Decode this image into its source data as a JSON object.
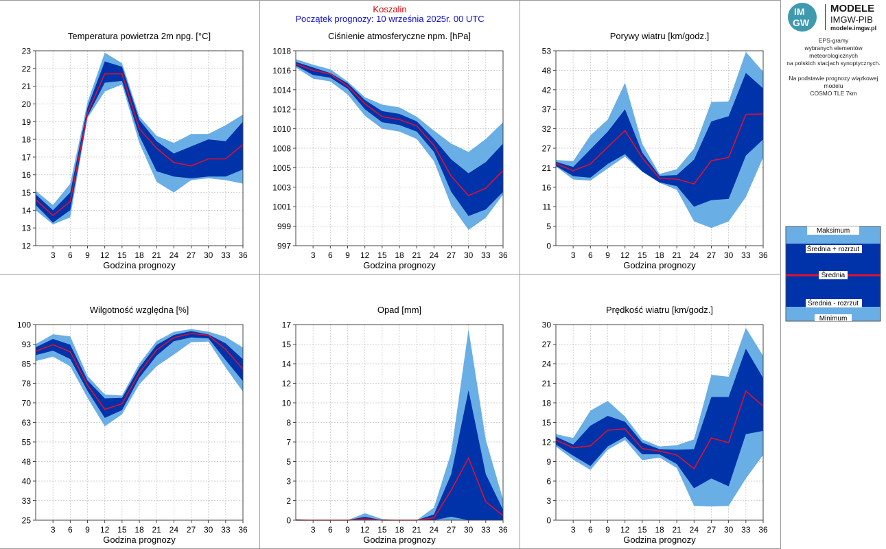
{
  "header": {
    "station": "Koszalin",
    "forecast_start": "Początek prognozy: 10 września 2025r. 00 UTC"
  },
  "logo": {
    "mark_top": "IM",
    "mark_bottom": "GW",
    "title": "MODELE",
    "subtitle": "IMGW-PIB",
    "site": "modele.imgw.pl"
  },
  "description": {
    "lines": [
      "EPS-gramy",
      "wybranych elementów meteorologicznych",
      "na polskich stacjach  synoptycznych."
    ],
    "lines2": [
      "Na podstawie prognozy wiązkowej modelu",
      "COSMO TLE 7km"
    ]
  },
  "legend": {
    "items": [
      "Maksimum",
      "Średnia + rozrzut",
      "Średnia",
      "Średnia - rozrzut",
      "Minimum"
    ]
  },
  "colors": {
    "envelope_light": "#6aaee6",
    "envelope_dark": "#0033aa",
    "mean_line": "#e0102e",
    "grid": "#bfbfbf"
  },
  "chart_data": [
    {
      "type": "area",
      "title": "Temperatura powietrza 2m npg. [°C]",
      "xlabel": "Godzina prognozy",
      "x": [
        0,
        3,
        6,
        9,
        12,
        15,
        18,
        21,
        24,
        27,
        30,
        33,
        36
      ],
      "xlim": [
        0,
        36
      ],
      "xticks": [
        "3",
        "6",
        "9",
        "12",
        "15",
        "18",
        "21",
        "24",
        "27",
        "30",
        "33",
        "36"
      ],
      "ylim": [
        12,
        23
      ],
      "yticks": [
        "12",
        "13",
        "14",
        "15",
        "16",
        "17",
        "18",
        "19",
        "20",
        "21",
        "22",
        "23"
      ],
      "series": [
        {
          "name": "Maksimum",
          "values": [
            15.1,
            14.3,
            15.5,
            20.1,
            22.9,
            22.3,
            19.3,
            18.2,
            17.8,
            18.3,
            18.3,
            18.8,
            19.4
          ]
        },
        {
          "name": "Średnia + rozrzut",
          "values": [
            14.9,
            14.0,
            15.0,
            19.8,
            22.4,
            22.1,
            19.1,
            17.9,
            17.2,
            17.6,
            18.0,
            17.9,
            19.0
          ]
        },
        {
          "name": "Średnia",
          "values": [
            14.6,
            13.7,
            14.5,
            19.5,
            21.7,
            21.7,
            18.6,
            17.5,
            16.7,
            16.5,
            16.9,
            16.9,
            17.7
          ]
        },
        {
          "name": "Średnia - rozrzut",
          "values": [
            14.3,
            13.3,
            14.0,
            19.3,
            21.2,
            21.3,
            18.2,
            16.2,
            15.9,
            15.8,
            15.9,
            15.9,
            16.3
          ]
        },
        {
          "name": "Minimum",
          "values": [
            14.0,
            13.2,
            13.6,
            19.2,
            20.7,
            21.1,
            17.8,
            15.6,
            15.0,
            15.7,
            15.8,
            15.7,
            15.5
          ]
        }
      ]
    },
    {
      "type": "area",
      "title": "Ciśnienie atmosferyczne npm. [hPa]",
      "xlabel": "Godzina prognozy",
      "x": [
        0,
        3,
        6,
        9,
        12,
        15,
        18,
        21,
        24,
        27,
        30,
        33,
        36
      ],
      "xlim": [
        0,
        36
      ],
      "xticks": [
        "3",
        "6",
        "9",
        "12",
        "15",
        "18",
        "21",
        "24",
        "27",
        "30",
        "33",
        "36"
      ],
      "ylim": [
        997,
        1018
      ],
      "yticks": [
        "997",
        "999",
        "1001",
        "1003",
        "1005",
        "1008",
        "1010",
        "1012",
        "1014",
        "1016",
        "1018"
      ],
      "series": [
        {
          "name": "Maksimum",
          "values": [
            1017.1,
            1016.5,
            1016.0,
            1014.7,
            1013.0,
            1012.2,
            1011.9,
            1010.9,
            1009.4,
            1008.0,
            1007.1,
            1008.5,
            1010.3
          ]
        },
        {
          "name": "Średnia + rozrzut",
          "values": [
            1016.8,
            1016.2,
            1015.6,
            1014.5,
            1012.7,
            1011.5,
            1011.2,
            1010.4,
            1008.5,
            1006.3,
            1004.8,
            1006.0,
            1008.0
          ]
        },
        {
          "name": "Średnia",
          "values": [
            1016.6,
            1015.9,
            1015.5,
            1014.2,
            1012.3,
            1010.9,
            1010.6,
            1009.9,
            1007.8,
            1004.5,
            1002.4,
            1003.2,
            1005.1
          ]
        },
        {
          "name": "Średnia - rozrzut",
          "values": [
            1016.4,
            1015.4,
            1015.1,
            1013.9,
            1011.7,
            1010.3,
            1010.0,
            1009.3,
            1007.1,
            1002.8,
            1000.2,
            1000.9,
            1002.8
          ]
        },
        {
          "name": "Minimum",
          "values": [
            1016.2,
            1015.0,
            1014.7,
            1013.3,
            1011.0,
            1009.6,
            1009.3,
            1008.5,
            1006.1,
            1001.3,
            998.7,
            1000.0,
            1002.5
          ]
        }
      ]
    },
    {
      "type": "area",
      "title": "Porywy wiatru [km/godz.]",
      "xlabel": "Godzina prognozy",
      "x": [
        0,
        3,
        6,
        9,
        12,
        15,
        18,
        21,
        24,
        27,
        30,
        33,
        36
      ],
      "xlim": [
        0,
        36
      ],
      "xticks": [
        "3",
        "6",
        "9",
        "12",
        "15",
        "18",
        "21",
        "24",
        "27",
        "30",
        "33",
        "36"
      ],
      "ylim": [
        0,
        53
      ],
      "yticks": [
        "0",
        "5",
        "11",
        "16",
        "21",
        "27",
        "32",
        "37",
        "42",
        "48",
        "53"
      ],
      "series": [
        {
          "name": "Maksimum",
          "values": [
            23.3,
            23.0,
            30.0,
            34.3,
            44.3,
            27.7,
            19.5,
            20.8,
            26.4,
            39.1,
            39.2,
            52.7,
            47.3
          ]
        },
        {
          "name": "Średnia + rozrzut",
          "values": [
            22.8,
            21.4,
            26.2,
            31.0,
            37.1,
            25.3,
            19.0,
            19.2,
            23.4,
            33.8,
            35.2,
            47.0,
            42.8
          ]
        },
        {
          "name": "Średnia",
          "values": [
            22.3,
            20.4,
            22.2,
            26.8,
            31.3,
            23.9,
            18.3,
            18.1,
            16.8,
            23.1,
            24.0,
            35.7,
            35.8
          ]
        },
        {
          "name": "Średnia - rozrzut",
          "values": [
            21.7,
            18.9,
            18.5,
            22.2,
            24.9,
            20.2,
            17.2,
            16.2,
            10.6,
            12.4,
            12.7,
            24.5,
            28.9
          ]
        },
        {
          "name": "Minimum",
          "values": [
            21.5,
            18.0,
            17.7,
            21.0,
            24.2,
            20.1,
            17.1,
            15.2,
            6.6,
            4.8,
            6.6,
            13.2,
            24.0
          ]
        }
      ]
    },
    {
      "type": "area",
      "title": "Wilgotność względna [%]",
      "xlabel": "Godzina prognozy",
      "x": [
        0,
        3,
        6,
        9,
        12,
        15,
        18,
        21,
        24,
        27,
        30,
        33,
        36
      ],
      "xlim": [
        0,
        36
      ],
      "xticks": [
        "3",
        "6",
        "9",
        "12",
        "15",
        "18",
        "21",
        "24",
        "27",
        "30",
        "33",
        "36"
      ],
      "ylim": [
        25,
        100
      ],
      "yticks": [
        "25",
        "33",
        "40",
        "48",
        "55",
        "63",
        "70",
        "78",
        "85",
        "93",
        "100"
      ],
      "series": [
        {
          "name": "Maksimum",
          "values": [
            92.5,
            96.3,
            95.5,
            80.3,
            73.2,
            72.8,
            85.0,
            93.7,
            97.2,
            98.3,
            97.3,
            95.3,
            91.2
          ]
        },
        {
          "name": "Średnia + rozrzut",
          "values": [
            91.3,
            94.5,
            92.3,
            78.6,
            71.7,
            71.9,
            83.5,
            92.2,
            96.0,
            97.5,
            96.2,
            92.8,
            86.7
          ]
        },
        {
          "name": "Średnia",
          "values": [
            89.8,
            92.3,
            89.6,
            76.8,
            67.5,
            69.6,
            81.5,
            90.3,
            95.0,
            96.6,
            95.9,
            90.5,
            82.9
          ]
        },
        {
          "name": "Średnia - rozrzut",
          "values": [
            88.3,
            90.0,
            86.8,
            74.6,
            64.2,
            67.2,
            79.6,
            88.1,
            93.6,
            95.1,
            94.7,
            86.4,
            78.3
          ]
        },
        {
          "name": "Minimum",
          "values": [
            86.0,
            87.7,
            84.0,
            71.9,
            61.0,
            65.6,
            77.1,
            84.0,
            88.5,
            93.2,
            93.5,
            83.5,
            74.3
          ]
        }
      ]
    },
    {
      "type": "area",
      "title": "Opad [mm]",
      "xlabel": "Godzina prognozy",
      "x": [
        0,
        3,
        6,
        9,
        12,
        15,
        18,
        21,
        24,
        27,
        30,
        33,
        36
      ],
      "xlim": [
        0,
        36
      ],
      "xticks": [
        "3",
        "6",
        "9",
        "12",
        "15",
        "18",
        "21",
        "24",
        "27",
        "30",
        "33",
        "36"
      ],
      "ylim": [
        0,
        17
      ],
      "yticks": [
        "0",
        "2",
        "3",
        "5",
        "7",
        "8",
        "10",
        "12",
        "14",
        "15",
        "17"
      ],
      "series": [
        {
          "name": "Maksimum",
          "values": [
            0.1,
            0.0,
            0.0,
            0.0,
            0.6,
            0.1,
            0.0,
            0.0,
            1.1,
            5.9,
            16.6,
            7.0,
            1.8
          ]
        },
        {
          "name": "Średnia + rozrzut",
          "values": [
            0.0,
            0.0,
            0.0,
            0.0,
            0.3,
            0.0,
            0.0,
            0.0,
            0.5,
            4.0,
            11.3,
            4.0,
            0.9
          ]
        },
        {
          "name": "Średnia",
          "values": [
            0.0,
            0.0,
            0.0,
            0.0,
            0.1,
            0.0,
            0.0,
            0.0,
            0.2,
            2.6,
            5.4,
            1.6,
            0.4
          ]
        },
        {
          "name": "Średnia - rozrzut",
          "values": [
            0.0,
            0.0,
            0.0,
            0.0,
            0.0,
            0.0,
            0.0,
            0.0,
            0.0,
            0.3,
            0.0,
            0.0,
            0.0
          ]
        },
        {
          "name": "Minimum",
          "values": [
            0.0,
            0.0,
            0.0,
            0.0,
            0.0,
            0.0,
            0.0,
            0.0,
            0.0,
            0.0,
            0.0,
            0.0,
            0.0
          ]
        }
      ]
    },
    {
      "type": "area",
      "title": "Prędkość wiatru [km/godz.]",
      "xlabel": "Godzina prognozy",
      "x": [
        0,
        3,
        6,
        9,
        12,
        15,
        18,
        21,
        24,
        27,
        30,
        33,
        36
      ],
      "xlim": [
        0,
        36
      ],
      "xticks": [
        "3",
        "6",
        "9",
        "12",
        "15",
        "18",
        "21",
        "24",
        "27",
        "30",
        "33",
        "36"
      ],
      "ylim": [
        0,
        30
      ],
      "yticks": [
        "0",
        "3",
        "6",
        "9",
        "12",
        "15",
        "18",
        "21",
        "24",
        "27",
        "30"
      ],
      "series": [
        {
          "name": "Maksimum",
          "values": [
            13.2,
            12.6,
            16.8,
            18.3,
            15.9,
            12.4,
            11.3,
            11.5,
            12.4,
            22.3,
            22.0,
            29.5,
            25.2
          ]
        },
        {
          "name": "Średnia + rozrzut",
          "values": [
            12.8,
            11.6,
            14.5,
            16.0,
            15.1,
            11.9,
            10.9,
            10.8,
            10.9,
            18.9,
            18.9,
            26.3,
            21.8
          ]
        },
        {
          "name": "Średnia",
          "values": [
            12.3,
            11.1,
            11.4,
            13.8,
            14.0,
            11.0,
            10.6,
            10.0,
            7.9,
            12.6,
            11.9,
            19.8,
            17.5
          ]
        },
        {
          "name": "Średnia - rozrzut",
          "values": [
            11.6,
            9.9,
            8.3,
            11.3,
            12.8,
            10.1,
            10.1,
            8.6,
            4.9,
            6.4,
            5.2,
            13.2,
            13.7
          ]
        },
        {
          "name": "Minimum",
          "values": [
            11.3,
            9.3,
            7.7,
            10.8,
            12.3,
            9.2,
            9.6,
            8.0,
            2.2,
            2.1,
            2.2,
            6.4,
            10.0
          ]
        }
      ]
    }
  ]
}
